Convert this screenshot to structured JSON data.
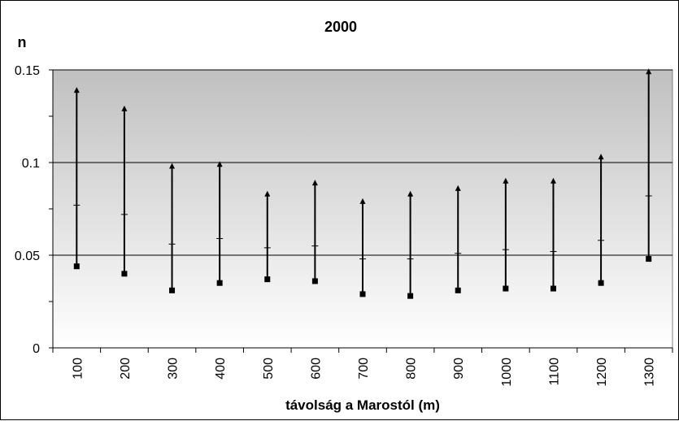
{
  "chart_data": {
    "type": "high-low",
    "title": "2000",
    "xlabel": "távolság a Marostól (m)",
    "ylabel": "n",
    "categories": [
      "100",
      "200",
      "300",
      "400",
      "500",
      "600",
      "700",
      "800",
      "900",
      "1000",
      "1100",
      "1200",
      "1300"
    ],
    "series": [
      {
        "role": "max",
        "marker": "triangle",
        "values": [
          0.139,
          0.129,
          0.098,
          0.099,
          0.083,
          0.089,
          0.079,
          0.083,
          0.086,
          0.09,
          0.09,
          0.103,
          0.149
        ]
      },
      {
        "role": "mean",
        "marker": "dash",
        "values": [
          0.077,
          0.072,
          0.056,
          0.059,
          0.054,
          0.055,
          0.048,
          0.048,
          0.051,
          0.053,
          0.052,
          0.058,
          0.082
        ]
      },
      {
        "role": "min",
        "marker": "square",
        "values": [
          0.044,
          0.04,
          0.031,
          0.035,
          0.037,
          0.036,
          0.029,
          0.028,
          0.031,
          0.032,
          0.032,
          0.035,
          0.048
        ]
      }
    ],
    "y_ticks": [
      "0",
      "0.05",
      "0.1",
      "0.15"
    ],
    "y_tick_values": [
      0,
      0.05,
      0.1,
      0.15
    ],
    "ylim": [
      0,
      0.15
    ],
    "grid": true,
    "legend": "none",
    "colors": {
      "plot_top": "#c0c0c0",
      "plot_bottom": "#ffffff",
      "line": "#000000"
    }
  }
}
